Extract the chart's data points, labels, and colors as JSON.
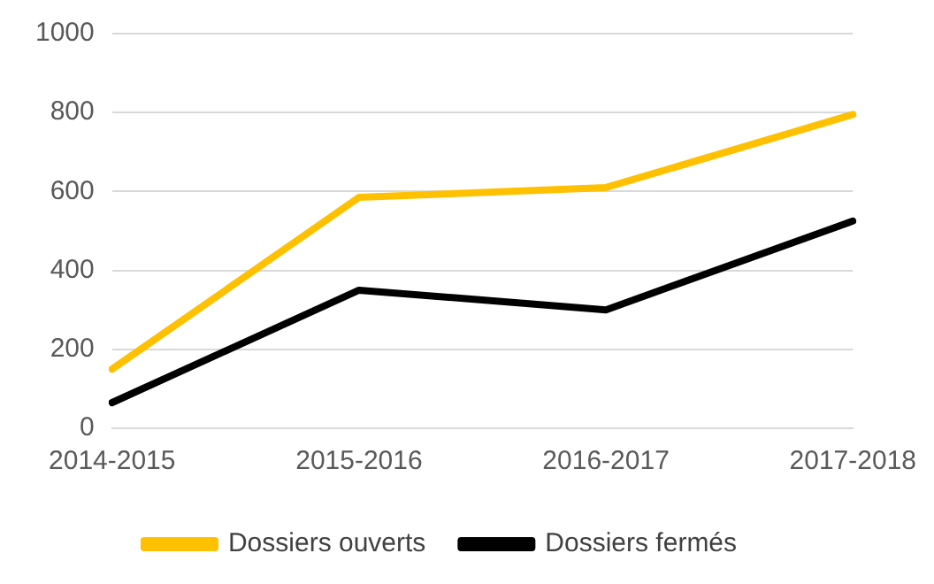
{
  "chart_data": {
    "type": "line",
    "categories": [
      "2014-2015",
      "2015-2016",
      "2016-2017",
      "2017-2018"
    ],
    "series": [
      {
        "name": "Dossiers ouverts",
        "color": "#ffc000",
        "values": [
          150,
          585,
          610,
          795
        ]
      },
      {
        "name": "Dossiers fermés",
        "color": "#000000",
        "values": [
          65,
          350,
          300,
          525
        ]
      }
    ],
    "ylim": [
      0,
      1000
    ],
    "yticks": [
      0,
      200,
      400,
      600,
      800,
      1000
    ],
    "grid": "y",
    "legend": "bottom",
    "marker": "none",
    "line_style": "solid"
  }
}
